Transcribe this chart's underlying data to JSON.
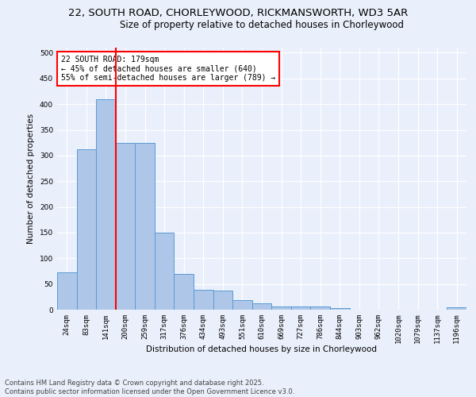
{
  "title_line1": "22, SOUTH ROAD, CHORLEYWOOD, RICKMANSWORTH, WD3 5AR",
  "title_line2": "Size of property relative to detached houses in Chorleywood",
  "xlabel": "Distribution of detached houses by size in Chorleywood",
  "ylabel": "Number of detached properties",
  "bar_labels": [
    "24sqm",
    "83sqm",
    "141sqm",
    "200sqm",
    "259sqm",
    "317sqm",
    "376sqm",
    "434sqm",
    "493sqm",
    "551sqm",
    "610sqm",
    "669sqm",
    "727sqm",
    "786sqm",
    "844sqm",
    "903sqm",
    "962sqm",
    "1020sqm",
    "1079sqm",
    "1137sqm",
    "1196sqm"
  ],
  "bar_values": [
    72,
    312,
    410,
    325,
    325,
    150,
    70,
    38,
    37,
    18,
    12,
    6,
    6,
    6,
    3,
    0,
    0,
    0,
    0,
    0,
    4
  ],
  "bar_color": "#aec6e8",
  "bar_edge_color": "#5b9bd5",
  "bg_color": "#eaf0fb",
  "grid_color": "#ffffff",
  "annotation_text": "22 SOUTH ROAD: 179sqm\n← 45% of detached houses are smaller (640)\n55% of semi-detached houses are larger (789) →",
  "annotation_box_color": "#ffffff",
  "annotation_box_edge": "red",
  "vline_color": "red",
  "ylim": [
    0,
    510
  ],
  "yticks": [
    0,
    50,
    100,
    150,
    200,
    250,
    300,
    350,
    400,
    450,
    500
  ],
  "footer_line1": "Contains HM Land Registry data © Crown copyright and database right 2025.",
  "footer_line2": "Contains public sector information licensed under the Open Government Licence v3.0.",
  "title_fontsize": 9.5,
  "subtitle_fontsize": 8.5,
  "axis_label_fontsize": 7.5,
  "tick_fontsize": 6.5,
  "annotation_fontsize": 7,
  "footer_fontsize": 6
}
